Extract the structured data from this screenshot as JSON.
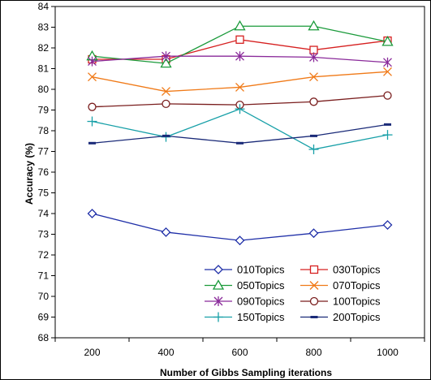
{
  "chart_data": {
    "type": "line",
    "title": "",
    "xlabel": "Number of Gibbs Sampling iterations",
    "ylabel": "Accuracy (%)",
    "x": [
      200,
      400,
      600,
      800,
      1000
    ],
    "x_tick_labels": [
      "200",
      "400",
      "600",
      "800",
      "1000"
    ],
    "xlim": [
      100,
      1100
    ],
    "ylim": [
      68,
      84
    ],
    "y_tick_labels": [
      "68",
      "69",
      "70",
      "71",
      "72",
      "73",
      "74",
      "75",
      "76",
      "77",
      "78",
      "79",
      "80",
      "81",
      "82",
      "83",
      "84"
    ],
    "grid": false,
    "legend_position": "bottom-right",
    "series": [
      {
        "name": "010Topics",
        "values": [
          74.0,
          73.1,
          72.7,
          73.05,
          73.45
        ],
        "color": "#1f2fa8",
        "marker": "diamond"
      },
      {
        "name": "030Topics",
        "values": [
          81.45,
          81.45,
          82.4,
          81.9,
          82.35
        ],
        "color": "#d62020",
        "marker": "square"
      },
      {
        "name": "050Topics",
        "values": [
          81.6,
          81.25,
          83.05,
          83.05,
          82.3
        ],
        "color": "#1a9a3a",
        "marker": "triangle"
      },
      {
        "name": "070Topics",
        "values": [
          80.6,
          79.9,
          80.1,
          80.6,
          80.85
        ],
        "color": "#f07a18",
        "marker": "x"
      },
      {
        "name": "090Topics",
        "values": [
          81.35,
          81.6,
          81.6,
          81.55,
          81.3
        ],
        "color": "#8a2a9a",
        "marker": "asterisk"
      },
      {
        "name": "100Topics",
        "values": [
          79.15,
          79.3,
          79.25,
          79.4,
          79.7
        ],
        "color": "#7a1e1e",
        "marker": "circle"
      },
      {
        "name": "150Topics",
        "values": [
          78.45,
          77.7,
          79.05,
          77.1,
          77.8
        ],
        "color": "#18a0a8",
        "marker": "plus"
      },
      {
        "name": "200Topics",
        "values": [
          77.4,
          77.75,
          77.4,
          77.75,
          78.3
        ],
        "color": "#1a2a78",
        "marker": "dash"
      }
    ]
  }
}
